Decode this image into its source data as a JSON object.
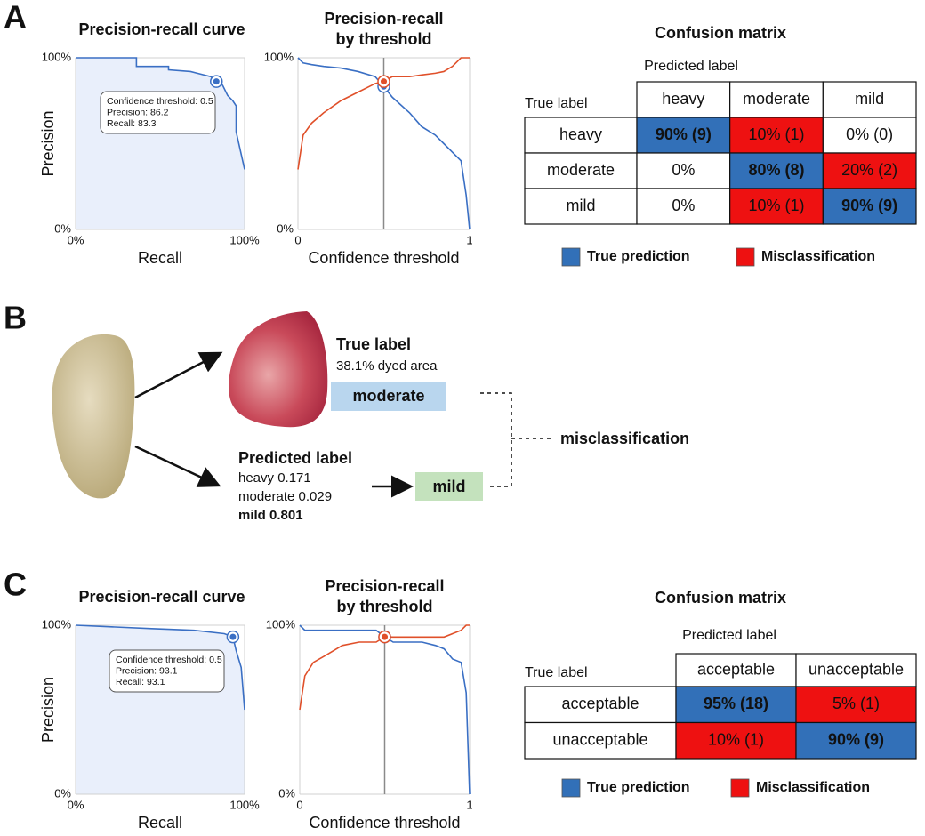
{
  "panel_labels": [
    "A",
    "B",
    "C"
  ],
  "chart_data": [
    {
      "type": "line",
      "title": "Precision-recall curve",
      "x_label": "Recall",
      "y_label": "Precision",
      "x": [
        0,
        36,
        36,
        55,
        55,
        68,
        72,
        80,
        83.3,
        87,
        90,
        93,
        95,
        95,
        100
      ],
      "values": [
        100,
        100,
        95,
        95,
        93,
        92,
        91,
        89,
        86.2,
        84,
        78,
        75,
        72,
        57,
        35
      ],
      "color": "#3a6fc4",
      "area_color": "#e9effb",
      "xlim": [
        0,
        100
      ],
      "ylim": [
        0,
        100
      ],
      "xticks": [
        {
          "value": 0,
          "label": "0%"
        },
        {
          "value": 100,
          "label": "100%"
        }
      ],
      "yticks": [
        {
          "value": 0,
          "label": "0%"
        },
        {
          "value": 100,
          "label": "100%"
        }
      ],
      "highlight": {
        "x": 83.3,
        "y": 86.2
      },
      "tooltip": [
        "Confidence threshold: 0.5",
        "Precision: 86.2",
        "Recall: 83.3"
      ],
      "grid": true
    },
    {
      "type": "threshold",
      "title": [
        "Precision-recall",
        "by threshold"
      ],
      "x_label": "Confidence threshold",
      "x": [
        0,
        0.03,
        0.08,
        0.15,
        0.25,
        0.35,
        0.45,
        0.5,
        0.55,
        0.65,
        0.72,
        0.8,
        0.85,
        0.9,
        0.95,
        0.98,
        1
      ],
      "series": [
        {
          "color": "#3a6fc4",
          "values": [
            100,
            97,
            96,
            95,
            94,
            92,
            89,
            83.3,
            77,
            68,
            60,
            55,
            50,
            45,
            40,
            20,
            0
          ]
        },
        {
          "color": "#e0502a",
          "values": [
            35,
            55,
            62,
            68,
            75,
            80,
            85,
            86.2,
            89,
            89,
            90,
            91,
            92,
            95,
            100,
            100,
            100
          ]
        }
      ],
      "threshold": 0.5,
      "xlim": [
        0,
        1
      ],
      "ylim": [
        0,
        100
      ],
      "xticks": [
        0,
        1
      ],
      "yticks": [
        {
          "value": 0,
          "label": "0%"
        },
        {
          "value": 100,
          "label": "100%"
        }
      ],
      "grid": true
    },
    {
      "type": "line",
      "title": "Precision-recall curve",
      "x_label": "Recall",
      "y_label": "Precision",
      "x": [
        0,
        45,
        70,
        88,
        93.1,
        95,
        98,
        100
      ],
      "values": [
        100,
        98,
        97,
        95,
        93.1,
        85,
        75,
        50
      ],
      "color": "#3a6fc4",
      "area_color": "#e9effb",
      "xlim": [
        0,
        100
      ],
      "ylim": [
        0,
        100
      ],
      "xticks": [
        {
          "value": 0,
          "label": "0%"
        },
        {
          "value": 100,
          "label": "100%"
        }
      ],
      "yticks": [
        {
          "value": 0,
          "label": "0%"
        },
        {
          "value": 100,
          "label": "100%"
        }
      ],
      "highlight": {
        "x": 93.1,
        "y": 93.1
      },
      "tooltip": [
        "Confidence threshold: 0.5",
        "Precision: 93.1",
        "Recall: 93.1"
      ],
      "grid": true
    },
    {
      "type": "threshold",
      "title": [
        "Precision-recall",
        "by threshold"
      ],
      "x_label": "Confidence threshold",
      "x": [
        0,
        0.03,
        0.08,
        0.15,
        0.25,
        0.35,
        0.45,
        0.5,
        0.55,
        0.65,
        0.72,
        0.8,
        0.85,
        0.9,
        0.95,
        0.98,
        1
      ],
      "series": [
        {
          "color": "#3a6fc4",
          "values": [
            100,
            97,
            97,
            97,
            97,
            97,
            97,
            93.1,
            90,
            90,
            90,
            88,
            86,
            80,
            78,
            60,
            0
          ]
        },
        {
          "color": "#e0502a",
          "values": [
            50,
            70,
            78,
            82,
            88,
            90,
            90,
            93.1,
            93,
            93,
            93,
            93,
            93,
            95,
            97,
            100,
            100
          ]
        }
      ],
      "threshold": 0.5,
      "xlim": [
        0,
        1
      ],
      "ylim": [
        0,
        100
      ],
      "xticks": [
        0,
        1
      ],
      "yticks": [
        {
          "value": 0,
          "label": "0%"
        },
        {
          "value": 100,
          "label": "100%"
        }
      ],
      "grid": true
    }
  ],
  "matrices": [
    {
      "title": "Confusion matrix",
      "predicted_label": "Predicted label",
      "true_label": "True label",
      "columns": [
        "heavy",
        "moderate",
        "mild"
      ],
      "rows": [
        {
          "label": "heavy",
          "cells": [
            "90% (9)",
            "10% (1)",
            "0% (0)"
          ],
          "fills": [
            "#3270b8",
            "#ee1111",
            "#ffffff"
          ]
        },
        {
          "label": "moderate",
          "cells": [
            "0%",
            "80% (8)",
            "20% (2)"
          ],
          "fills": [
            "#ffffff",
            "#3270b8",
            "#ee1111"
          ]
        },
        {
          "label": "mild",
          "cells": [
            "0%",
            "10% (1)",
            "90% (9)"
          ],
          "fills": [
            "#ffffff",
            "#ee1111",
            "#3270b8"
          ]
        }
      ],
      "legend": [
        {
          "label": "True prediction",
          "color": "#3270b8"
        },
        {
          "label": "Misclassification",
          "color": "#ee1111"
        }
      ]
    },
    {
      "title": "Confusion matrix",
      "predicted_label": "Predicted label",
      "true_label": "True label",
      "columns": [
        "acceptable",
        "unacceptable"
      ],
      "rows": [
        {
          "label": "acceptable",
          "cells": [
            "95% (18)",
            "5% (1)"
          ],
          "fills": [
            "#3270b8",
            "#ee1111"
          ]
        },
        {
          "label": "unacceptable",
          "cells": [
            "10% (1)",
            "90% (9)"
          ],
          "fills": [
            "#ee1111",
            "#3270b8"
          ]
        }
      ],
      "legend": [
        {
          "label": "True prediction",
          "color": "#3270b8"
        },
        {
          "label": "Misclassification",
          "color": "#ee1111"
        }
      ]
    }
  ],
  "example": {
    "true_label": "True label",
    "dyed_area": "38.1% dyed area",
    "true_class": "moderate",
    "predicted_label": "Predicted label",
    "scores": [
      "heavy 0.171",
      "moderate 0.029",
      "mild 0.801"
    ],
    "predicted_class": "mild",
    "result": "misclassification"
  }
}
